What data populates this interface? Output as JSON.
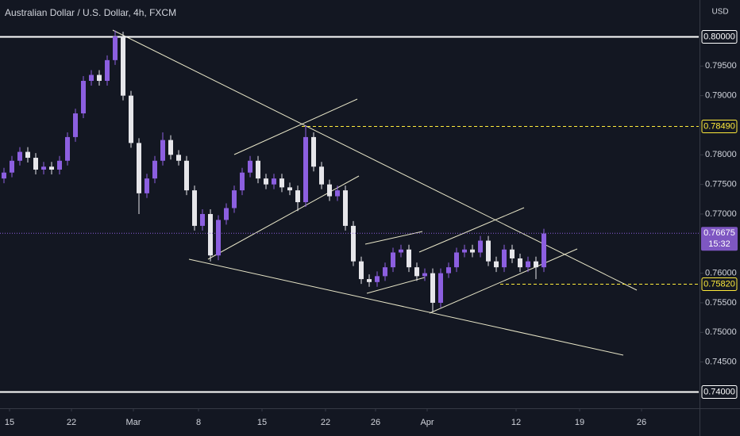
{
  "chart_data": {
    "type": "candlestick",
    "title": "Australian Dollar / U.S. Dollar, 4h, FXCM",
    "currency": "USD",
    "up_color": "#8c5fe0",
    "down_color": "#e6e6ea",
    "xlim": [
      0,
      88
    ],
    "xticks": [
      {
        "value": 1.2,
        "label": "15"
      },
      {
        "value": 9,
        "label": "22"
      },
      {
        "value": 16.8,
        "label": "Mar"
      },
      {
        "value": 25,
        "label": "8"
      },
      {
        "value": 33,
        "label": "15"
      },
      {
        "value": 41,
        "label": "22"
      },
      {
        "value": 47.3,
        "label": "26"
      },
      {
        "value": 53.8,
        "label": "Apr"
      },
      {
        "value": 65,
        "label": "12"
      },
      {
        "value": 73,
        "label": "19"
      },
      {
        "value": 80.8,
        "label": "26"
      }
    ],
    "ylim": [
      0.73718,
      0.80616
    ],
    "yticks": [
      {
        "value": 0.795,
        "label": "0.79500"
      },
      {
        "value": 0.79,
        "label": "0.79000"
      },
      {
        "value": 0.78,
        "label": "0.78000"
      },
      {
        "value": 0.775,
        "label": "0.77500"
      },
      {
        "value": 0.77,
        "label": "0.77000"
      },
      {
        "value": 0.76,
        "label": "0.76000"
      },
      {
        "value": 0.755,
        "label": "0.75500"
      },
      {
        "value": 0.75,
        "label": "0.75000"
      },
      {
        "value": 0.745,
        "label": "0.74500"
      }
    ],
    "levels": [
      {
        "value": 0.8,
        "label": "0.80000",
        "style": "solid",
        "color": "#ffffff",
        "from": 0
      },
      {
        "value": 0.74,
        "label": "0.74000",
        "style": "solid",
        "color": "#ffffff",
        "from": 0
      },
      {
        "value": 0.7849,
        "label": "0.78490",
        "style": "dashed",
        "color": "#ffeb3b",
        "from": 38
      },
      {
        "value": 0.7582,
        "label": "0.75820",
        "style": "dashed",
        "color": "#ffeb3b",
        "from": 63
      }
    ],
    "current_price": {
      "value": 0.76675,
      "label": "0.76675",
      "countdown": "15:32"
    },
    "open": [
      0.776,
      0.777,
      0.779,
      0.7805,
      0.7795,
      0.7775,
      0.778,
      0.7775,
      0.779,
      0.783,
      0.787,
      0.7925,
      0.7935,
      0.7925,
      0.796,
      0.8,
      0.79,
      0.782,
      0.7735,
      0.776,
      0.779,
      0.7825,
      0.78,
      0.779,
      0.774,
      0.768,
      0.77,
      0.763,
      0.769,
      0.771,
      0.774,
      0.777,
      0.779,
      0.776,
      0.775,
      0.776,
      0.7745,
      0.774,
      0.772,
      0.783,
      0.778,
      0.775,
      0.773,
      0.774,
      0.768,
      0.762,
      0.759,
      0.7585,
      0.7595,
      0.761,
      0.7635,
      0.764,
      0.761,
      0.7595,
      0.76,
      0.755,
      0.76,
      0.761,
      0.7635,
      0.764,
      0.7635,
      0.7655,
      0.762,
      0.761,
      0.764,
      0.7625,
      0.761,
      0.762,
      0.761
    ],
    "high": [
      0.7778,
      0.7798,
      0.7813,
      0.7813,
      0.7803,
      0.7788,
      0.7788,
      0.7798,
      0.7838,
      0.7878,
      0.7933,
      0.7943,
      0.7943,
      0.7968,
      0.801,
      0.8008,
      0.7908,
      0.7828,
      0.7768,
      0.7798,
      0.7838,
      0.7833,
      0.7808,
      0.7798,
      0.7748,
      0.7708,
      0.7708,
      0.7698,
      0.7718,
      0.7748,
      0.7778,
      0.7798,
      0.7798,
      0.7768,
      0.7768,
      0.7768,
      0.7753,
      0.7748,
      0.785,
      0.7838,
      0.7788,
      0.7758,
      0.7748,
      0.7748,
      0.7688,
      0.7628,
      0.7598,
      0.7603,
      0.7618,
      0.7643,
      0.7648,
      0.7648,
      0.7618,
      0.7608,
      0.7608,
      0.7608,
      0.7618,
      0.7643,
      0.7648,
      0.7648,
      0.7663,
      0.7663,
      0.7628,
      0.7648,
      0.7648,
      0.7633,
      0.7628,
      0.7628,
      0.7675
    ],
    "low": [
      0.7752,
      0.7762,
      0.7782,
      0.7787,
      0.7767,
      0.7767,
      0.7767,
      0.7767,
      0.7782,
      0.7822,
      0.7862,
      0.7917,
      0.7917,
      0.7917,
      0.7952,
      0.7892,
      0.7812,
      0.77,
      0.7727,
      0.7752,
      0.7782,
      0.7792,
      0.7782,
      0.7732,
      0.7672,
      0.7672,
      0.762,
      0.7622,
      0.7682,
      0.7702,
      0.7732,
      0.7762,
      0.7752,
      0.7742,
      0.7742,
      0.7737,
      0.7732,
      0.7705,
      0.7712,
      0.7772,
      0.7742,
      0.7722,
      0.7722,
      0.7672,
      0.7612,
      0.7582,
      0.7577,
      0.7577,
      0.7587,
      0.7602,
      0.7627,
      0.7602,
      0.7587,
      0.7587,
      0.7535,
      0.7542,
      0.7592,
      0.7602,
      0.7627,
      0.7627,
      0.7627,
      0.7612,
      0.7602,
      0.7602,
      0.7617,
      0.7602,
      0.7602,
      0.759,
      0.7602
    ],
    "close": [
      0.777,
      0.779,
      0.7805,
      0.7795,
      0.7775,
      0.778,
      0.7775,
      0.779,
      0.783,
      0.787,
      0.7925,
      0.7935,
      0.7925,
      0.796,
      0.8,
      0.79,
      0.782,
      0.7735,
      0.776,
      0.779,
      0.7825,
      0.78,
      0.779,
      0.774,
      0.768,
      0.77,
      0.763,
      0.769,
      0.771,
      0.774,
      0.777,
      0.779,
      0.776,
      0.775,
      0.776,
      0.7745,
      0.774,
      0.772,
      0.783,
      0.778,
      0.775,
      0.773,
      0.774,
      0.768,
      0.762,
      0.759,
      0.7585,
      0.7595,
      0.761,
      0.7635,
      0.764,
      0.761,
      0.7595,
      0.76,
      0.755,
      0.76,
      0.761,
      0.7635,
      0.764,
      0.7635,
      0.7655,
      0.762,
      0.761,
      0.764,
      0.7625,
      0.761,
      0.762,
      0.761,
      0.7667
    ]
  }
}
